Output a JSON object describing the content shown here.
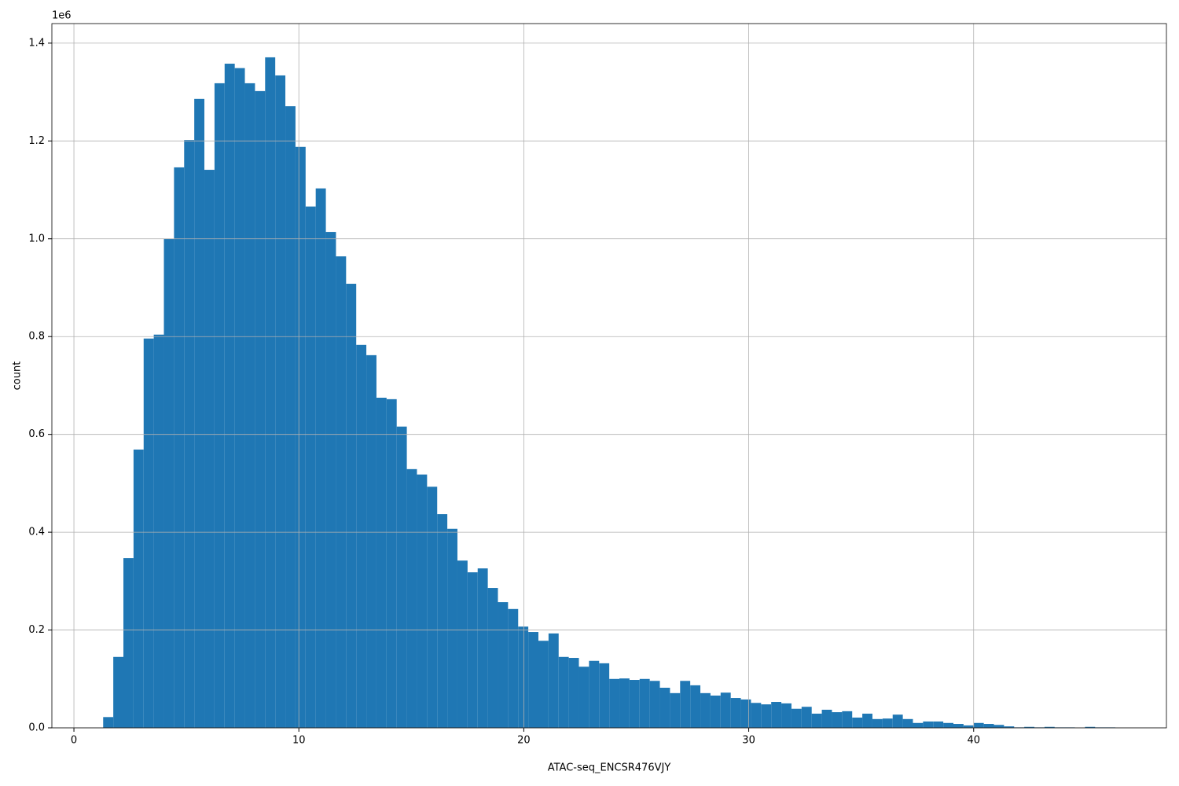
{
  "chart_data": {
    "type": "histogram",
    "x_label": "ATAC-seq_ENCSR476VJY",
    "y_label": "count",
    "y_offset_label": "1e6",
    "color": "#1f77b4",
    "grid": true,
    "xlim": [
      -0.98,
      48.57
    ],
    "xticks": [
      0,
      10,
      20,
      30,
      40
    ],
    "ylim": [
      0,
      1.44
    ],
    "yticks": [
      {
        "value": 0,
        "label": "0.0"
      },
      0.2,
      0.4,
      0.6,
      0.8,
      {
        "value": 1,
        "label": "1.0"
      },
      1.2,
      1.4
    ],
    "bins": [
      1.3,
      1.75,
      2.2,
      2.65,
      3.1,
      3.55,
      4,
      4.45,
      4.9,
      5.35,
      5.8,
      6.25,
      6.7,
      7.15,
      7.6,
      8.05,
      8.5,
      8.95,
      9.4,
      9.85,
      10.3,
      10.75,
      11.2,
      11.65,
      12.1,
      12.55,
      13,
      13.45,
      13.9,
      14.35,
      14.8,
      15.25,
      15.7,
      16.15,
      16.6,
      17.05,
      17.5,
      17.95,
      18.4,
      18.85,
      19.3,
      19.75,
      20.2,
      20.65,
      21.1,
      21.55,
      22,
      22.45,
      22.9,
      23.35,
      23.8,
      24.25,
      24.7,
      25.15,
      25.6,
      26.05,
      26.5,
      26.95,
      27.4,
      27.85,
      28.3,
      28.75,
      29.2,
      29.65,
      30.1,
      30.55,
      31,
      31.45,
      31.9,
      32.35,
      32.8,
      33.25,
      33.7,
      34.15,
      34.6,
      35.05,
      35.5,
      35.95,
      36.4,
      36.85,
      37.3,
      37.75,
      38.2,
      38.65,
      39.1,
      39.55,
      40,
      40.45,
      40.9,
      41.35,
      41.8,
      42.25,
      42.7,
      43.15,
      43.6,
      44.05,
      44.5,
      44.95,
      45.4,
      45.85,
      46.3
    ],
    "counts": [
      0.022,
      0.145,
      0.347,
      0.569,
      0.796,
      0.804,
      1.0,
      1.146,
      1.202,
      1.286,
      1.141,
      1.318,
      1.358,
      1.349,
      1.318,
      1.302,
      1.371,
      1.334,
      1.271,
      1.188,
      1.066,
      1.103,
      1.014,
      0.964,
      0.908,
      0.783,
      0.762,
      0.675,
      0.672,
      0.616,
      0.529,
      0.518,
      0.493,
      0.437,
      0.407,
      0.342,
      0.318,
      0.326,
      0.286,
      0.257,
      0.243,
      0.207,
      0.196,
      0.178,
      0.193,
      0.145,
      0.143,
      0.125,
      0.137,
      0.132,
      0.1,
      0.101,
      0.098,
      0.1,
      0.096,
      0.082,
      0.071,
      0.096,
      0.087,
      0.071,
      0.066,
      0.072,
      0.061,
      0.058,
      0.051,
      0.048,
      0.053,
      0.05,
      0.039,
      0.043,
      0.029,
      0.037,
      0.032,
      0.034,
      0.021,
      0.029,
      0.018,
      0.019,
      0.027,
      0.018,
      0.01,
      0.013,
      0.013,
      0.01,
      0.008,
      0.005,
      0.01,
      0.008,
      0.006,
      0.003,
      0.001,
      0.002,
      0.001,
      0.002,
      0.001,
      0.001,
      0,
      0.002,
      0.001,
      0.001
    ]
  }
}
